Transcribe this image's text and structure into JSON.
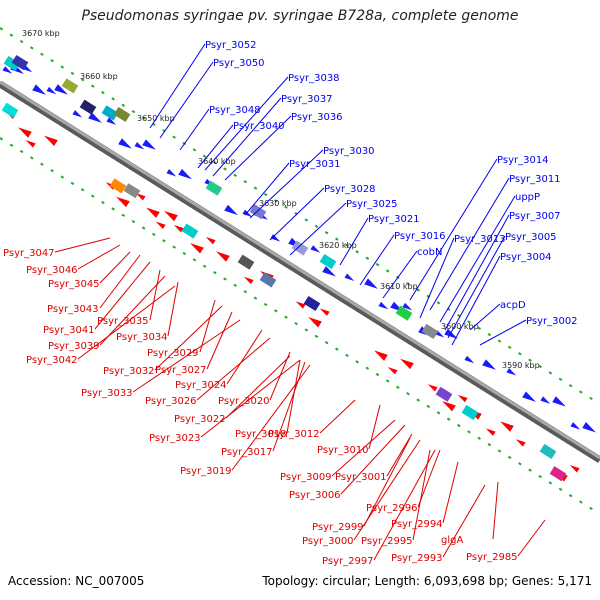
{
  "title": "Pseudomonas syringae pv. syringae B728a, complete genome",
  "accession": "Accession: NC_007005",
  "summary": "Topology: circular; Length: 6,093,698 bp; Genes: 5,171",
  "colors": {
    "forward": "#1a1aff",
    "reverse": "#ff0000",
    "backbone": "#8c8c8c",
    "tick": "#22aa22",
    "label_forward": "#0000ee",
    "label_reverse": "#dd0000"
  },
  "kbp_ticks": [
    "3670 kbp",
    "3660 kbp",
    "3650 kbp",
    "3640 kbp",
    "3630 kbp",
    "3620 kbp",
    "3610 kbp",
    "3600 kbp",
    "3590 kbp"
  ],
  "forward_labels": [
    "Psyr_3052",
    "Psyr_3050",
    "Psyr_3038",
    "Psyr_3037",
    "Psyr_3048",
    "Psyr_3040",
    "Psyr_3036",
    "Psyr_3030",
    "Psyr_3031",
    "Psyr_3028",
    "Psyr_3025",
    "Psyr_3021",
    "Psyr_3016",
    "cobN",
    "Psyr_3013",
    "Psyr_3014",
    "Psyr_3011",
    "uppP",
    "Psyr_3007",
    "Psyr_3005",
    "Psyr_3004",
    "acpD",
    "Psyr_3002"
  ],
  "reverse_labels": [
    "Psyr_3047",
    "Psyr_3046",
    "Psyr_3045",
    "Psyr_3043",
    "Psyr_3041",
    "Psyr_3035",
    "Psyr_3039",
    "Psyr_3034",
    "Psyr_3042",
    "Psyr_3029",
    "Psyr_3032",
    "Psyr_3027",
    "Psyr_3033",
    "Psyr_3024",
    "Psyr_3026",
    "Psyr_3020",
    "Psyr_3022",
    "Psyr_3018",
    "Psyr_3012",
    "Psyr_3023",
    "Psyr_3017",
    "Psyr_3019",
    "Psyr_3010",
    "Psyr_3009",
    "Psyr_3001",
    "Psyr_3006",
    "Psyr_2996",
    "Psyr_2994",
    "Psyr_2999",
    "Psyr_3000",
    "Psyr_2995",
    "glgA",
    "Psyr_2997",
    "Psyr_2993",
    "Psyr_2985"
  ]
}
